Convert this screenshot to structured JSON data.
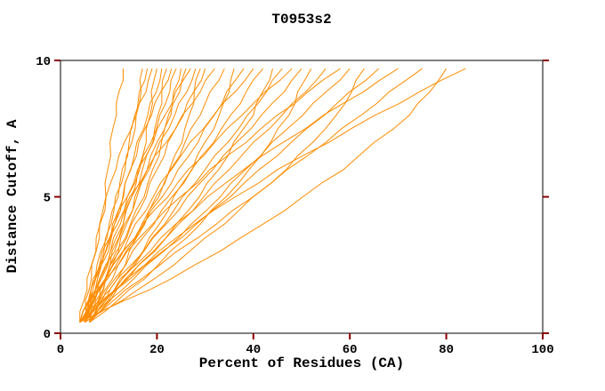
{
  "page": {
    "background_color": "#ffffff",
    "text_color": "#000000"
  },
  "chart_data": {
    "type": "line",
    "title": "T0953s2",
    "xlabel": "Percent of Residues (CA)",
    "ylabel": "Distance Cutoff, A",
    "xlim": [
      0,
      100
    ],
    "ylim": [
      0,
      10
    ],
    "x_ticks": [
      0,
      20,
      40,
      60,
      80,
      100
    ],
    "y_ticks": [
      0,
      5,
      10
    ],
    "grid": false,
    "legend": false,
    "line_color": "#ff8c00",
    "axis_color": "#000000",
    "tick_color": "#8b0000",
    "point_format": "[percent_of_residues_CA, distance_cutoff_A]",
    "series": [
      [
        [
          5,
          0.4
        ],
        [
          6.4,
          2
        ],
        [
          8.1,
          4
        ],
        [
          9.8,
          6
        ],
        [
          11.6,
          8
        ],
        [
          13,
          9.7
        ]
      ],
      [
        [
          4,
          0.4
        ],
        [
          7.3,
          2
        ],
        [
          10.5,
          4
        ],
        [
          13.4,
          6
        ],
        [
          15.7,
          8
        ],
        [
          17,
          9.7
        ]
      ],
      [
        [
          5,
          0.4
        ],
        [
          7.2,
          2
        ],
        [
          10.1,
          4
        ],
        [
          12.8,
          6
        ],
        [
          15.7,
          8
        ],
        [
          18,
          9.7
        ]
      ],
      [
        [
          4,
          0.4
        ],
        [
          5.5,
          2
        ],
        [
          8.2,
          4
        ],
        [
          11.5,
          6
        ],
        [
          15.4,
          8
        ],
        [
          19,
          9.7
        ]
      ],
      [
        [
          6,
          0.4
        ],
        [
          9.5,
          2
        ],
        [
          13,
          4
        ],
        [
          16.1,
          6
        ],
        [
          18.6,
          8
        ],
        [
          20,
          9.7
        ]
      ],
      [
        [
          5,
          0.4
        ],
        [
          7.7,
          2
        ],
        [
          11.2,
          4
        ],
        [
          14.6,
          6
        ],
        [
          18.1,
          8
        ],
        [
          21,
          9.7
        ]
      ],
      [
        [
          4,
          0.4
        ],
        [
          8.5,
          2
        ],
        [
          13,
          4
        ],
        [
          17,
          6
        ],
        [
          20.2,
          8
        ],
        [
          22,
          9.7
        ]
      ],
      [
        [
          6,
          0.4
        ],
        [
          7.7,
          2
        ],
        [
          10.8,
          4
        ],
        [
          14.5,
          6
        ],
        [
          18.9,
          8
        ],
        [
          23,
          9.7
        ]
      ],
      [
        [
          5,
          0.4
        ],
        [
          8.2,
          2
        ],
        [
          12.4,
          4
        ],
        [
          16.4,
          6
        ],
        [
          20.6,
          8
        ],
        [
          24,
          9.7
        ]
      ],
      [
        [
          4,
          0.4
        ],
        [
          9.3,
          2
        ],
        [
          14.5,
          4
        ],
        [
          19.1,
          6
        ],
        [
          22.9,
          8
        ],
        [
          25,
          9.7
        ]
      ],
      [
        [
          6,
          0.4
        ],
        [
          9.4,
          2
        ],
        [
          13.7,
          4
        ],
        [
          18,
          6
        ],
        [
          22.4,
          8
        ],
        [
          26,
          9.7
        ]
      ],
      [
        [
          5,
          0.4
        ],
        [
          7.2,
          2
        ],
        [
          11.2,
          4
        ],
        [
          16,
          6
        ],
        [
          21.7,
          8
        ],
        [
          27,
          9.7
        ]
      ],
      [
        [
          4,
          0.4
        ],
        [
          8.1,
          2
        ],
        [
          13.3,
          4
        ],
        [
          18.4,
          6
        ],
        [
          23.7,
          8
        ],
        [
          28,
          9.7
        ]
      ],
      [
        [
          6,
          0.4
        ],
        [
          11.8,
          2
        ],
        [
          17.5,
          4
        ],
        [
          22.6,
          6
        ],
        [
          26.7,
          8
        ],
        [
          29,
          9.7
        ]
      ],
      [
        [
          5,
          0.4
        ],
        [
          9.3,
          2
        ],
        [
          14.7,
          4
        ],
        [
          20,
          6
        ],
        [
          25.5,
          8
        ],
        [
          30,
          9.7
        ]
      ],
      [
        [
          4,
          0.4
        ],
        [
          6.8,
          2
        ],
        [
          11.8,
          4
        ],
        [
          18,
          6
        ],
        [
          25.3,
          8
        ],
        [
          32,
          9.7
        ]
      ],
      [
        [
          6,
          0.4
        ],
        [
          10.8,
          2
        ],
        [
          16.9,
          4
        ],
        [
          22.8,
          6
        ],
        [
          29,
          8
        ],
        [
          34,
          9.7
        ]
      ],
      [
        [
          5,
          0.4
        ],
        [
          12.8,
          2
        ],
        [
          20.5,
          4
        ],
        [
          27.3,
          6
        ],
        [
          32.9,
          8
        ],
        [
          36,
          9.7
        ]
      ],
      [
        [
          4,
          0.4
        ],
        [
          9.8,
          2
        ],
        [
          17.3,
          4
        ],
        [
          24.4,
          6
        ],
        [
          31.9,
          8
        ],
        [
          38,
          9.7
        ]
      ],
      [
        [
          6,
          0.4
        ],
        [
          9.4,
          2
        ],
        [
          15.5,
          4
        ],
        [
          23,
          6
        ],
        [
          31.8,
          8
        ],
        [
          40,
          9.7
        ]
      ],
      [
        [
          5,
          0.4
        ],
        [
          11.3,
          2
        ],
        [
          19.4,
          4
        ],
        [
          27.2,
          6
        ],
        [
          35.3,
          8
        ],
        [
          42,
          9.7
        ]
      ],
      [
        [
          4,
          0.4
        ],
        [
          14,
          2
        ],
        [
          24,
          4
        ],
        [
          32.8,
          6
        ],
        [
          40,
          8
        ],
        [
          44,
          9.7
        ]
      ],
      [
        [
          6,
          0.4
        ],
        [
          12.8,
          2
        ],
        [
          21.6,
          4
        ],
        [
          30,
          6
        ],
        [
          38.8,
          8
        ],
        [
          46,
          9.7
        ]
      ],
      [
        [
          5,
          0.4
        ],
        [
          9.3,
          2
        ],
        [
          17,
          4
        ],
        [
          26.5,
          6
        ],
        [
          37.7,
          8
        ],
        [
          48,
          9.7
        ]
      ],
      [
        [
          4,
          0.4
        ],
        [
          11.8,
          2
        ],
        [
          21.9,
          4
        ],
        [
          31.6,
          6
        ],
        [
          41.7,
          8
        ],
        [
          50,
          9.7
        ]
      ],
      [
        [
          6,
          0.4
        ],
        [
          17.5,
          2
        ],
        [
          29,
          4
        ],
        [
          39.1,
          6
        ],
        [
          47.4,
          8
        ],
        [
          52,
          9.7
        ]
      ],
      [
        [
          5,
          0.4
        ],
        [
          13.5,
          2
        ],
        [
          24.5,
          4
        ],
        [
          35,
          6
        ],
        [
          46,
          8
        ],
        [
          55,
          9.7
        ]
      ],
      [
        [
          4,
          0.4
        ],
        [
          9.4,
          2
        ],
        [
          19.1,
          4
        ],
        [
          31,
          6
        ],
        [
          45,
          8
        ],
        [
          58,
          9.7
        ]
      ],
      [
        [
          6,
          0.4
        ],
        [
          15.2,
          2
        ],
        [
          27.1,
          4
        ],
        [
          38.4,
          6
        ],
        [
          50.3,
          8
        ],
        [
          60,
          9.7
        ]
      ],
      [
        [
          5,
          0.4
        ],
        [
          19.5,
          2
        ],
        [
          34,
          4
        ],
        [
          46.8,
          6
        ],
        [
          57.2,
          8
        ],
        [
          63,
          9.7
        ]
      ],
      [
        [
          4,
          0.4
        ],
        [
          14.5,
          2
        ],
        [
          28.2,
          4
        ],
        [
          41.2,
          6
        ],
        [
          54.8,
          8
        ],
        [
          66,
          9.7
        ]
      ],
      [
        [
          6,
          0.4
        ],
        [
          12.4,
          2
        ],
        [
          23.9,
          4
        ],
        [
          38,
          6
        ],
        [
          54.6,
          8
        ],
        [
          70,
          9.7
        ]
      ],
      [
        [
          5,
          0.4
        ],
        [
          16.9,
          2
        ],
        [
          32.3,
          4
        ],
        [
          47,
          6
        ],
        [
          62.4,
          8
        ],
        [
          75,
          9.7
        ]
      ],
      [
        [
          4,
          0.4
        ],
        [
          23,
          2
        ],
        [
          42,
          4
        ],
        [
          58.7,
          6
        ],
        [
          72.4,
          8
        ],
        [
          80,
          9.7
        ]
      ],
      [
        [
          6,
          0.4
        ],
        [
          13.8,
          2
        ],
        [
          27.8,
          4
        ],
        [
          45,
          6
        ],
        [
          65.3,
          8
        ],
        [
          84,
          9.7
        ]
      ]
    ]
  }
}
